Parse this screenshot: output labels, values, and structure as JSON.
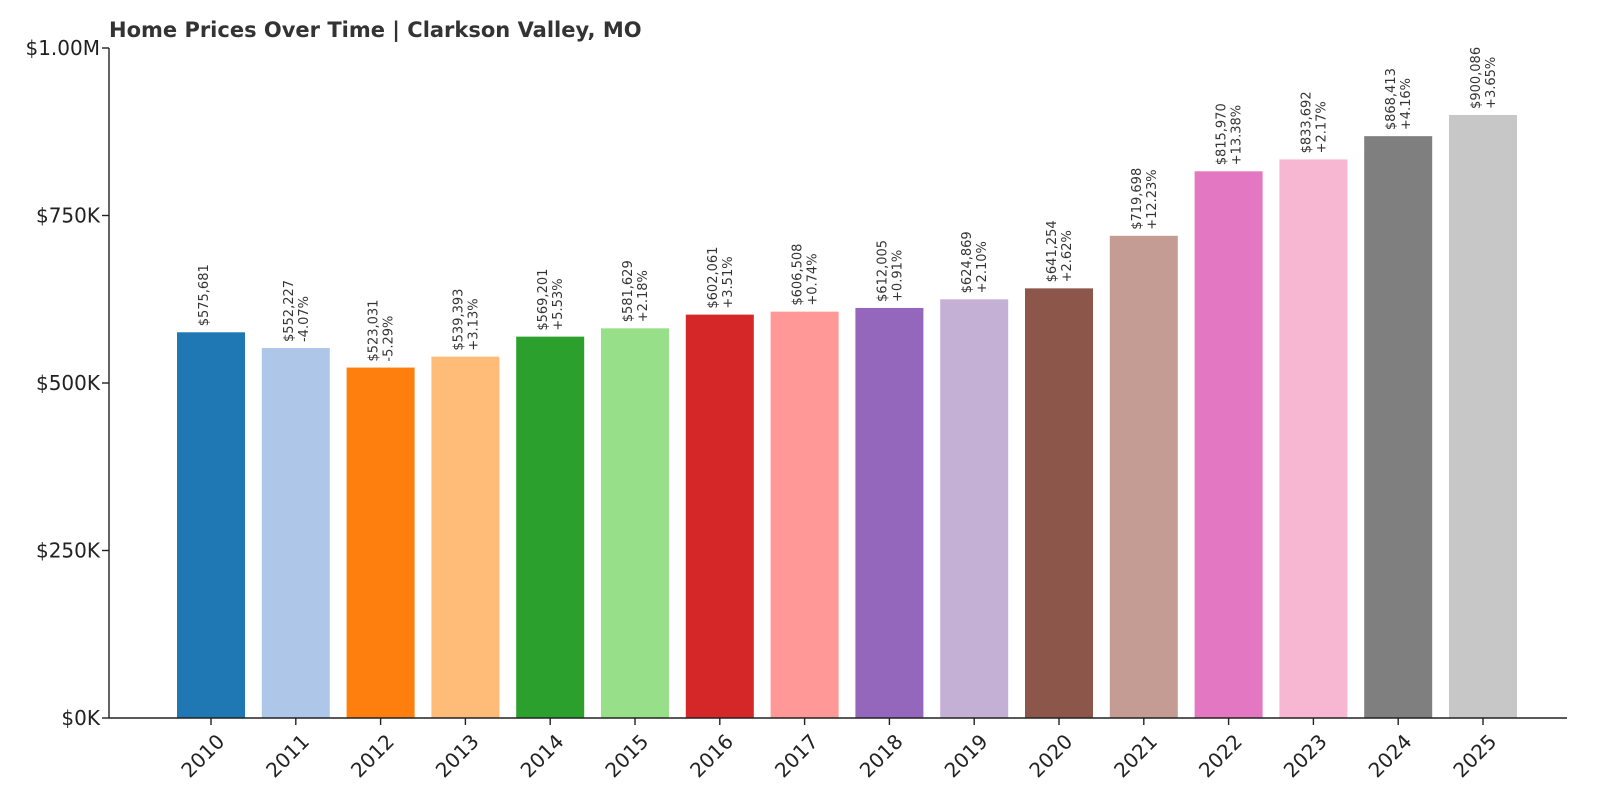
{
  "chart_data": {
    "type": "bar",
    "title": "Home Prices Over Time | Clarkson Valley, MO",
    "xlabel": "",
    "ylabel": "",
    "ylim": [
      0,
      1000000
    ],
    "yticks": [
      {
        "value": 0,
        "label": "$0K"
      },
      {
        "value": 250000,
        "label": "$250K"
      },
      {
        "value": 500000,
        "label": "$500K"
      },
      {
        "value": 750000,
        "label": "$750K"
      },
      {
        "value": 1000000,
        "label": "$1.00M"
      }
    ],
    "grid": false,
    "categories": [
      "2010",
      "2011",
      "2012",
      "2013",
      "2014",
      "2015",
      "2016",
      "2017",
      "2018",
      "2019",
      "2020",
      "2021",
      "2022",
      "2023",
      "2024",
      "2025"
    ],
    "values": [
      575681,
      552227,
      523031,
      539393,
      569201,
      581629,
      602061,
      606508,
      612005,
      624869,
      641254,
      719698,
      815970,
      833692,
      868413,
      900086
    ],
    "value_labels": [
      "$575,681",
      "$552,227",
      "$523,031",
      "$539,393",
      "$569,201",
      "$581,629",
      "$602,061",
      "$606,508",
      "$612,005",
      "$624,869",
      "$641,254",
      "$719,698",
      "$815,970",
      "$833,692",
      "$868,413",
      "$900,086"
    ],
    "change_labels": [
      "",
      "-4.07%",
      "-5.29%",
      "+3.13%",
      "+5.53%",
      "+2.18%",
      "+3.51%",
      "+0.74%",
      "+0.91%",
      "+2.10%",
      "+2.62%",
      "+12.23%",
      "+13.38%",
      "+2.17%",
      "+4.16%",
      "+3.65%"
    ],
    "colors": [
      "#1f77b4",
      "#aec7e8",
      "#ff7f0e",
      "#ffbb78",
      "#2ca02c",
      "#98df8a",
      "#d62728",
      "#ff9896",
      "#9467bd",
      "#c5b0d5",
      "#8c564b",
      "#c49c94",
      "#e377c2",
      "#f7b6d2",
      "#7f7f7f",
      "#c7c7c7"
    ]
  }
}
